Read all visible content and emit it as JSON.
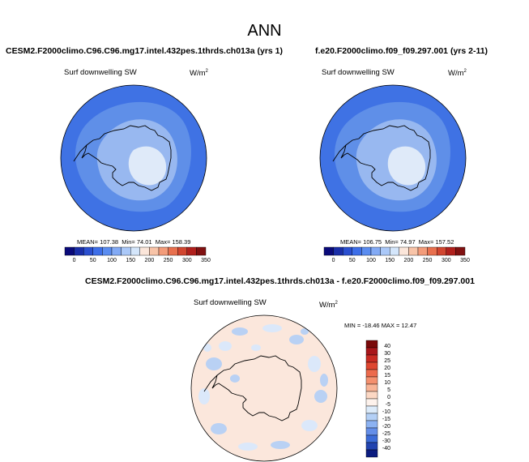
{
  "title": "ANN",
  "panels": [
    {
      "case_title": "CESM2.F2000climo.C96.C96.mg17.intel.432pes.1thrds.ch013a (yrs 1)",
      "variable": "Surf downwelling SW",
      "units": "W/m",
      "units_exp": "2",
      "stats": {
        "mean_label": "MEAN=",
        "mean": "107.38",
        "min_label": "Min=",
        "min": "74.01",
        "max_label": "Max=",
        "max": "158.39"
      }
    },
    {
      "case_title": "f.e20.F2000climo.f09_f09.297.001 (yrs 2-11)",
      "variable": "Surf downwelling SW",
      "units": "W/m",
      "units_exp": "2",
      "stats": {
        "mean_label": "MEAN=",
        "mean": "106.75",
        "min_label": "Min=",
        "min": "74.97",
        "max_label": "Max=",
        "max": "157.52"
      }
    }
  ],
  "diff_panel": {
    "case_title": "CESM2.F2000climo.C96.C96.mg17.intel.432pes.1thrds.ch013a - f.e20.F2000climo.f09_f09.297.001",
    "variable": "Surf downwelling SW",
    "units": "W/m",
    "units_exp": "2",
    "stats": {
      "min_label": "MIN =",
      "min": "-18.46",
      "max_label": "MAX =",
      "max": "12.47"
    }
  },
  "colorbar_abs": {
    "ticks": [
      "0",
      "50",
      "100",
      "150",
      "200",
      "250",
      "300",
      "350"
    ],
    "colors": [
      "#0a0a7a",
      "#1a2ea8",
      "#2a4fd0",
      "#3d6ee8",
      "#5a8cf0",
      "#82aaf5",
      "#aac8f8",
      "#d4e6fb",
      "#fbe6da",
      "#f8c4a8",
      "#f39c7a",
      "#e8704e",
      "#d14630",
      "#b0201c",
      "#801010"
    ]
  },
  "colorbar_diff": {
    "ticks": [
      "40",
      "30",
      "25",
      "20",
      "15",
      "10",
      "5",
      "0",
      "-5",
      "-10",
      "-15",
      "-20",
      "-25",
      "-30",
      "-40"
    ],
    "colors": [
      "#7a0a0a",
      "#a8161a",
      "#c82a22",
      "#de4630",
      "#ec6a4c",
      "#f4906e",
      "#f8b496",
      "#fcd8c4",
      "#fdf2ec",
      "#dcebfa",
      "#b4d0f6",
      "#8cb2f2",
      "#648ee8",
      "#3c6cd8",
      "#2244b0",
      "#0c1c80"
    ]
  },
  "map_colors": {
    "ocean_abs": "#3f72e4",
    "band_abs": "#5f8fe8",
    "inner_abs": "#98b8f0",
    "plateau_abs": "#dfeaf9",
    "ocean_diff": "#fbe7dc",
    "blue_patch_diff": "#b9d1f4",
    "light_blue_diff": "#dbe8fa",
    "coast": "#000000"
  }
}
